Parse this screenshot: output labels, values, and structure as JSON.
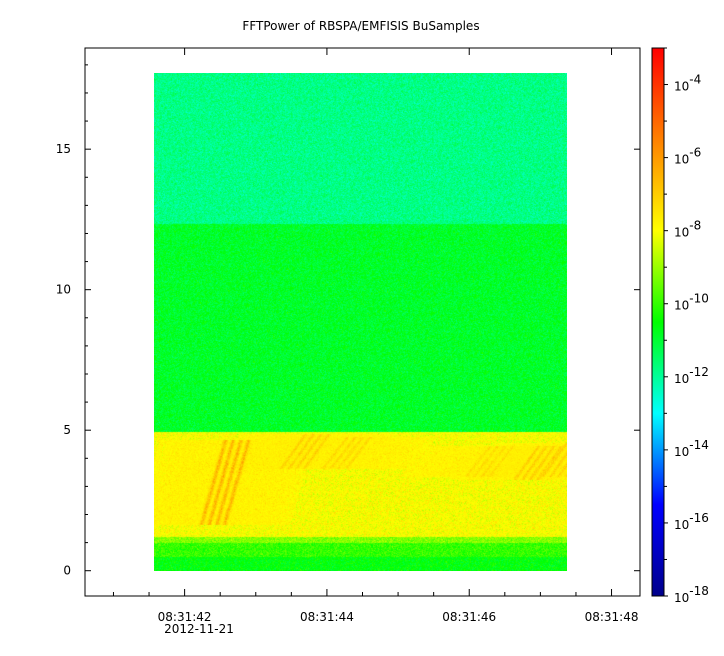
{
  "chart_data": {
    "type": "heatmap",
    "title": "FFTPower of RBSPA/EMFISIS  BuSamples",
    "xlabel": "",
    "ylabel": "",
    "x_tick_labels": [
      "08:31:42",
      "08:31:44",
      "08:31:46",
      "08:31:48"
    ],
    "x_date_label": "2012-11-21",
    "x_range": [
      "08:31:40.6",
      "08:31:48.4"
    ],
    "y_ticks": [
      0,
      5,
      10,
      15
    ],
    "y_tick_labels": [
      "0",
      "5",
      "10",
      "15"
    ],
    "ylim": [
      -0.9,
      18.6
    ],
    "data_extent": {
      "x_start": "08:31:41.52",
      "x_end": "08:31:47.45",
      "y_start": 0,
      "y_end": 17.5
    },
    "colorbar": {
      "scale": "log",
      "range": [
        1e-18,
        0.001
      ],
      "tick_labels": [
        {
          "base": "10",
          "exp": "-4",
          "value": 0.0001
        },
        {
          "base": "10",
          "exp": "-6",
          "value": 1e-06
        },
        {
          "base": "10",
          "exp": "-8",
          "value": 1e-08
        },
        {
          "base": "10",
          "exp": "-10",
          "value": 1e-10
        },
        {
          "base": "10",
          "exp": "-12",
          "value": 1e-12
        },
        {
          "base": "10",
          "exp": "-14",
          "value": 1e-14
        },
        {
          "base": "10",
          "exp": "-16",
          "value": 1e-16
        },
        {
          "base": "10",
          "exp": "-18",
          "value": 1e-18
        }
      ],
      "colors": [
        "#00008b",
        "#0000ff",
        "#00ffff",
        "#00ff00",
        "#ffff00",
        "#ff8000",
        "#ff0000"
      ]
    },
    "bands": [
      {
        "y_range": [
          0,
          0.5
        ],
        "log10_power": -10.6
      },
      {
        "y_range": [
          0.5,
          1.0
        ],
        "log10_power": -10.0
      },
      {
        "y_range": [
          1.0,
          1.2
        ],
        "log10_power": -9.2
      },
      {
        "y_range": [
          1.2,
          4.9
        ],
        "log10_power": -8.0
      },
      {
        "y_range": [
          4.9,
          12.2
        ],
        "log10_power": -10.9
      },
      {
        "y_range": [
          12.2,
          17.5
        ],
        "log10_power": -11.8
      }
    ],
    "chorus_elements": [
      {
        "x": "08:31:42.20",
        "y_range": [
          1.6,
          4.6
        ],
        "log10_power": -6.2
      },
      {
        "x": "08:31:43.35",
        "y_range": [
          3.6,
          4.8
        ],
        "log10_power": -6.9
      },
      {
        "x": "08:31:43.95",
        "y_range": [
          3.6,
          4.7
        ],
        "log10_power": -7.1
      },
      {
        "x": "08:31:46.00",
        "y_range": [
          3.3,
          4.4
        ],
        "log10_power": -7.2
      },
      {
        "x": "08:31:46.70",
        "y_range": [
          3.2,
          4.4
        ],
        "log10_power": -6.8
      },
      {
        "x": "08:31:47.10",
        "y_range": [
          3.3,
          4.5
        ],
        "log10_power": -6.9
      }
    ]
  }
}
